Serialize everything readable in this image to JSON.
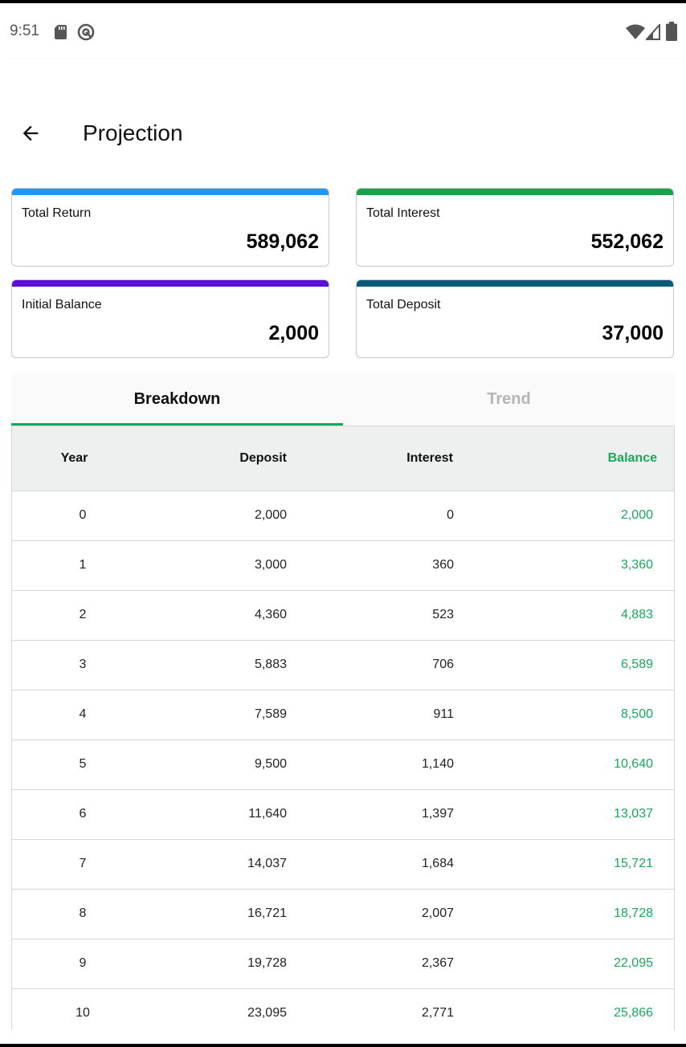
{
  "status_bar": {
    "time": "9:51",
    "icons": [
      "sd-card-icon",
      "sync-icon",
      "wifi-icon",
      "signal-icon",
      "battery-icon"
    ]
  },
  "app_bar": {
    "title": "Projection",
    "back_icon": "arrow-back-icon"
  },
  "cards": [
    {
      "label": "Total Return",
      "value": "589,062",
      "accent": "#2196f3"
    },
    {
      "label": "Total Interest",
      "value": "552,062",
      "accent": "#16a34a"
    },
    {
      "label": "Initial Balance",
      "value": "2,000",
      "accent": "#5b0fd6"
    },
    {
      "label": "Total Deposit",
      "value": "37,000",
      "accent": "#0c5a7a"
    }
  ],
  "tabs": [
    {
      "label": "Breakdown",
      "selected": true
    },
    {
      "label": "Trend",
      "selected": false
    }
  ],
  "colors": {
    "accent_green": "#17a85a",
    "header_bg": "#eef0ef"
  },
  "table": {
    "headers": {
      "year": "Year",
      "deposit": "Deposit",
      "interest": "Interest",
      "balance": "Balance"
    },
    "rows": [
      {
        "year": "0",
        "deposit": "2,000",
        "interest": "0",
        "balance": "2,000"
      },
      {
        "year": "1",
        "deposit": "3,000",
        "interest": "360",
        "balance": "3,360"
      },
      {
        "year": "2",
        "deposit": "4,360",
        "interest": "523",
        "balance": "4,883"
      },
      {
        "year": "3",
        "deposit": "5,883",
        "interest": "706",
        "balance": "6,589"
      },
      {
        "year": "4",
        "deposit": "7,589",
        "interest": "911",
        "balance": "8,500"
      },
      {
        "year": "5",
        "deposit": "9,500",
        "interest": "1,140",
        "balance": "10,640"
      },
      {
        "year": "6",
        "deposit": "11,640",
        "interest": "1,397",
        "balance": "13,037"
      },
      {
        "year": "7",
        "deposit": "14,037",
        "interest": "1,684",
        "balance": "15,721"
      },
      {
        "year": "8",
        "deposit": "16,721",
        "interest": "2,007",
        "balance": "18,728"
      },
      {
        "year": "9",
        "deposit": "19,728",
        "interest": "2,367",
        "balance": "22,095"
      },
      {
        "year": "10",
        "deposit": "23,095",
        "interest": "2,771",
        "balance": "25,866"
      }
    ]
  }
}
